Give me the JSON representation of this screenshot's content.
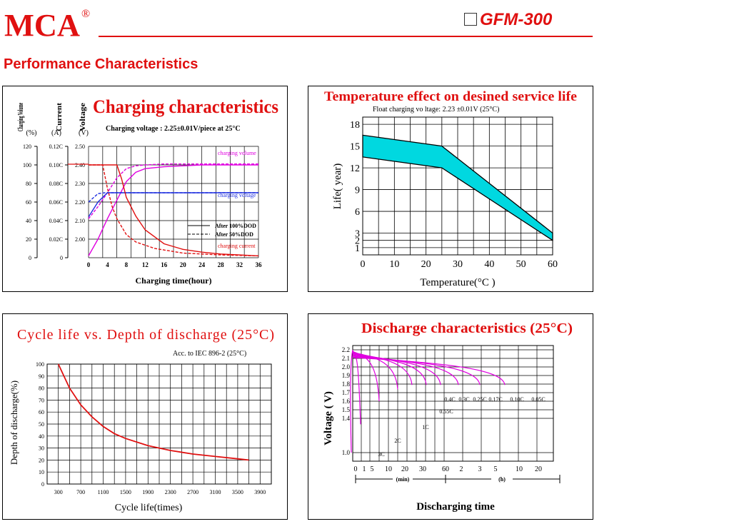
{
  "header": {
    "logo_text": "MCA",
    "registered_mark": "®",
    "model": "GFM-300",
    "section_title": "Performance Characteristics"
  },
  "colors": {
    "brand": "#e01010",
    "magenta": "#e000e0",
    "blue": "#2030e0",
    "cyan": "#00d8e0"
  },
  "chart_data": [
    {
      "type": "line",
      "title": "Charging characteristics",
      "subtitle": "Charging voltage : 2.25±0.01V/piece at 25°C",
      "xlabel": "Charging time(hour)",
      "y_axes": [
        {
          "label": "Charging Volume",
          "unit": "(%)",
          "ticks": [
            "120",
            "100",
            "80",
            "60",
            "40",
            "20",
            "0"
          ]
        },
        {
          "label": "Current",
          "unit": "(A)",
          "ticks": [
            "0.12C",
            "0.10C",
            "0.08C",
            "0.06C",
            "0.04C",
            "0.02C",
            "0"
          ]
        },
        {
          "label": "Voltage",
          "unit": "(V)",
          "ticks": [
            "2.50",
            "2.40",
            "2.30",
            "2.20",
            "2.10",
            "2.00"
          ]
        }
      ],
      "x_ticks": [
        "0",
        "4",
        "8",
        "12",
        "16",
        "20",
        "24",
        "28",
        "32",
        "36"
      ],
      "xlim": [
        0,
        36
      ],
      "ylim": [
        0,
        120
      ],
      "grid": true,
      "legend": [
        {
          "label": "After 100%DOD",
          "style": "solid"
        },
        {
          "label": "After 50%DOD",
          "style": "dashed"
        }
      ],
      "annotations": [
        "charging volume",
        "charging voltage",
        "charging current"
      ],
      "series": [
        {
          "kind": "volume",
          "style": "solid",
          "x": [
            0,
            2,
            4,
            6,
            8,
            10,
            12,
            16,
            20,
            24,
            28,
            32,
            36
          ],
          "y": [
            2,
            20,
            42,
            62,
            82,
            92,
            96,
            98,
            99,
            100,
            100,
            100,
            100
          ]
        },
        {
          "kind": "volume",
          "style": "dashed",
          "x": [
            0,
            2,
            4,
            6,
            8,
            10,
            12,
            16,
            20,
            24,
            28,
            32,
            36
          ],
          "y": [
            42,
            55,
            70,
            86,
            96,
            99,
            100,
            101,
            101,
            101,
            101,
            101,
            101
          ]
        },
        {
          "kind": "voltage",
          "unit": "V",
          "style": "solid",
          "x": [
            0,
            2,
            4,
            6,
            8,
            36
          ],
          "y": [
            2.12,
            2.2,
            2.25,
            2.25,
            2.25,
            2.25
          ]
        },
        {
          "kind": "voltage",
          "unit": "V",
          "style": "dashed",
          "x": [
            0,
            2,
            3.5,
            5,
            8,
            36
          ],
          "y": [
            2.2,
            2.245,
            2.25,
            2.25,
            2.25,
            2.25
          ]
        },
        {
          "kind": "current",
          "unit": "C",
          "style": "solid",
          "x": [
            0,
            6,
            7,
            8,
            10,
            12,
            16,
            20,
            24,
            28,
            32,
            36
          ],
          "y": [
            0.1,
            0.1,
            0.085,
            0.065,
            0.045,
            0.03,
            0.015,
            0.009,
            0.006,
            0.004,
            0.003,
            0.002
          ]
        },
        {
          "kind": "current",
          "unit": "C",
          "style": "dashed",
          "x": [
            0,
            3,
            4,
            5,
            6,
            8,
            10,
            14,
            20,
            28,
            36
          ],
          "y": [
            0.1,
            0.1,
            0.075,
            0.055,
            0.042,
            0.025,
            0.017,
            0.01,
            0.005,
            0.003,
            0.002
          ]
        }
      ]
    },
    {
      "type": "area",
      "title": "Temperature effect on desined service life",
      "subtitle": "Float charging vo  ltage:  2.23 ±0.01V   (25°C)",
      "xlabel": "Temperature(°C )",
      "ylabel": "Life(  year)",
      "x_ticks": [
        "0",
        "10",
        "20",
        "30",
        "40",
        "50",
        "60"
      ],
      "y_ticks": [
        "18",
        "15",
        "12",
        "9",
        "6",
        "3",
        "2",
        "1"
      ],
      "xlim": [
        0,
        60
      ],
      "ylim": [
        0,
        19
      ],
      "grid": true,
      "band": {
        "x": [
          0,
          25,
          60
        ],
        "upper": [
          16.5,
          15,
          3
        ],
        "lower": [
          13.5,
          12,
          2
        ]
      }
    },
    {
      "type": "line",
      "title": "Cycle life vs. Depth of discharge (25°C)",
      "subtitle": "Acc. to IEC 896-2 (25°C)",
      "xlabel": "Cycle life(times)",
      "ylabel": "Depth of discharge(%)",
      "x_ticks": [
        "300",
        "700",
        "1100",
        "1500",
        "1900",
        "2300",
        "2700",
        "3100",
        "3500",
        "3900"
      ],
      "y_ticks": [
        "100",
        "90",
        "80",
        "70",
        "60",
        "50",
        "40",
        "30",
        "20",
        "10",
        "0"
      ],
      "xlim": [
        100,
        4100
      ],
      "ylim": [
        0,
        100
      ],
      "grid": true,
      "series": [
        {
          "x": [
            300,
            400,
            500,
            700,
            900,
            1100,
            1300,
            1500,
            1900,
            2300,
            2700,
            3100,
            3500,
            3700
          ],
          "y": [
            100,
            90,
            80,
            66,
            56,
            48,
            42,
            38,
            32,
            28,
            25,
            23,
            21,
            20
          ]
        }
      ]
    },
    {
      "type": "line",
      "title": "Discharge characteristics (25°C)",
      "xlabel": "Discharging time",
      "ylabel": "Voltage ( V)",
      "y_ticks": [
        "2.2",
        "2.1",
        "2.0",
        "1.9",
        "1.8",
        "1.7",
        "1.6",
        "1.5",
        "1.4",
        "1.0"
      ],
      "x_ticks_min": [
        "0",
        "1",
        "5",
        "10",
        "20",
        "30",
        "60"
      ],
      "x_ticks_h": [
        "2",
        "3",
        "5",
        "10",
        "20"
      ],
      "x_unit_min": "(min)",
      "x_unit_h": "(h)",
      "grid": true,
      "series": [
        {
          "name": "3C",
          "end_x": 60,
          "end_v": 1.0
        },
        {
          "name": "2C",
          "end_x": 73,
          "end_v": 1.33
        },
        {
          "name": "1C",
          "end_x": 99,
          "end_v": 1.6
        },
        {
          "name": "0.55C",
          "end_x": 125,
          "end_v": 1.74
        },
        {
          "name": "0.4C",
          "end_x": 145,
          "end_v": 1.79
        },
        {
          "name": "0.3C",
          "end_x": 165,
          "end_v": 1.79
        },
        {
          "name": "0.25C",
          "end_x": 185,
          "end_v": 1.79
        },
        {
          "name": "0.17C",
          "end_x": 210,
          "end_v": 1.79
        },
        {
          "name": "0.10C",
          "end_x": 240,
          "end_v": 1.79
        },
        {
          "name": "0.05C",
          "end_x": 275,
          "end_v": 1.79
        }
      ]
    }
  ]
}
